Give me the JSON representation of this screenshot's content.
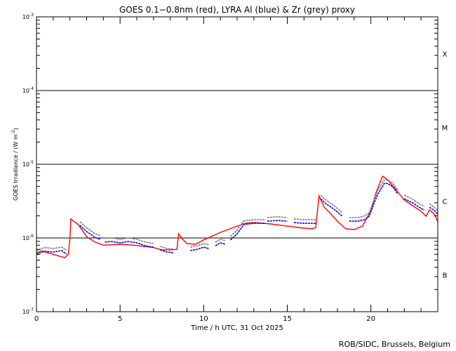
{
  "chart_data": {
    "type": "line",
    "title": "GOES 0.1−0.8nm (red), LYRA Al (blue) & Zr (grey) proxy",
    "xlabel": "Time / h UTC, 31 Oct 2025",
    "ylabel": "GOES Irradiance / (W m",
    "ylabel_sup": "-2",
    "ylabel_end": ")",
    "xlim": [
      0,
      24
    ],
    "ylim": [
      1e-07,
      0.001
    ],
    "yscale": "log",
    "x_ticks": [
      "0",
      "5",
      "10",
      "15",
      "20"
    ],
    "x_tick_values": [
      0,
      5,
      10,
      15,
      20
    ],
    "y_ticks": [
      {
        "base": "10",
        "exp": "-3",
        "value": 0.001
      },
      {
        "base": "10",
        "exp": "-4",
        "value": 0.0001
      },
      {
        "base": "10",
        "exp": "-5",
        "value": 1e-05
      },
      {
        "base": "10",
        "exp": "-6",
        "value": 1e-06
      },
      {
        "base": "10",
        "exp": "-7",
        "value": 1e-07
      }
    ],
    "reference_lines": [
      0.0001,
      1e-05,
      1e-06
    ],
    "flare_classes": [
      {
        "label": "X",
        "value": 0.000316
      },
      {
        "label": "M",
        "value": 3.16e-05
      },
      {
        "label": "C",
        "value": 3.16e-06
      },
      {
        "label": "B",
        "value": 3.16e-07
      }
    ],
    "colors": {
      "red": "#ff0000",
      "blue": "#0000ff",
      "grey": "#808080"
    },
    "series": [
      {
        "name": "GOES 0.1-0.8nm",
        "color": "red",
        "segments": [
          [
            [
              0,
              6.3e-07
            ],
            [
              0.3,
              6.7e-07
            ],
            [
              1,
              6e-07
            ],
            [
              1.7,
              5.4e-07
            ],
            [
              1.9,
              6e-07
            ],
            [
              2.0,
              9.8e-07
            ],
            [
              2.05,
              1.81e-06
            ],
            [
              2.5,
              1.52e-06
            ],
            [
              3,
              1.04e-06
            ],
            [
              3.5,
              8.8e-07
            ],
            [
              4,
              8e-07
            ],
            [
              5,
              8.2e-07
            ],
            [
              6,
              7.9e-07
            ],
            [
              7,
              7.4e-07
            ],
            [
              7.5,
              6.9e-07
            ],
            [
              8,
              6.9e-07
            ],
            [
              8.4,
              7e-07
            ],
            [
              8.5,
              1.14e-06
            ],
            [
              8.7,
              9.8e-07
            ],
            [
              9,
              8.4e-07
            ],
            [
              9.5,
              8.2e-07
            ],
            [
              10,
              9.4e-07
            ],
            [
              11,
              1.19e-06
            ],
            [
              12,
              1.45e-06
            ],
            [
              12.5,
              1.58e-06
            ],
            [
              13,
              1.62e-06
            ],
            [
              14,
              1.55e-06
            ],
            [
              15,
              1.45e-06
            ],
            [
              16,
              1.36e-06
            ],
            [
              16.5,
              1.33e-06
            ],
            [
              16.7,
              1.39e-06
            ],
            [
              16.9,
              3.73e-06
            ],
            [
              17.2,
              2.63e-06
            ],
            [
              17.5,
              2.25e-06
            ],
            [
              18,
              1.69e-06
            ],
            [
              18.5,
              1.33e-06
            ],
            [
              19,
              1.3e-06
            ],
            [
              19.5,
              1.45e-06
            ],
            [
              20,
              2.35e-06
            ],
            [
              20.3,
              4.07e-06
            ],
            [
              20.7,
              6.89e-06
            ],
            [
              21,
              6.17e-06
            ],
            [
              21.5,
              4.54e-06
            ],
            [
              22,
              3.27e-06
            ],
            [
              22.5,
              2.74e-06
            ],
            [
              23,
              2.3e-06
            ],
            [
              23.3,
              1.97e-06
            ],
            [
              23.5,
              2.4e-06
            ],
            [
              23.8,
              2.11e-06
            ],
            [
              24,
              1.66e-06
            ]
          ]
        ]
      },
      {
        "name": "LYRA Zr proxy",
        "color": "grey",
        "segments": [
          [
            [
              0,
              6.8e-07
            ],
            [
              0.5,
              7.4e-07
            ],
            [
              1,
              7.2e-07
            ],
            [
              1.5,
              7.5e-07
            ],
            [
              1.8,
              6.8e-07
            ]
          ],
          [
            [
              2.6,
              1.66e-06
            ],
            [
              3,
              1.37e-06
            ],
            [
              3.5,
              1.14e-06
            ],
            [
              3.8,
              1.08e-06
            ]
          ],
          [
            [
              4.1,
              9.9e-07
            ],
            [
              4.5,
              1e-06
            ],
            [
              5,
              9.6e-07
            ],
            [
              5.5,
              1e-06
            ],
            [
              6,
              9.6e-07
            ],
            [
              6.5,
              8.8e-07
            ],
            [
              7,
              8.4e-07
            ]
          ],
          [
            [
              7.4,
              7.7e-07
            ],
            [
              7.8,
              7.2e-07
            ],
            [
              8.2,
              7.1e-07
            ]
          ],
          [
            [
              9.2,
              7.5e-07
            ],
            [
              9.6,
              7.8e-07
            ],
            [
              10,
              8.4e-07
            ],
            [
              10.3,
              8.1e-07
            ]
          ],
          [
            [
              10.7,
              8.8e-07
            ],
            [
              11,
              9.6e-07
            ],
            [
              11.3,
              9.2e-07
            ]
          ],
          [
            [
              11.6,
              1.05e-06
            ],
            [
              12,
              1.28e-06
            ],
            [
              12.4,
              1.7e-06
            ],
            [
              13,
              1.77e-06
            ],
            [
              13.7,
              1.77e-06
            ]
          ],
          [
            [
              13.8,
              1.89e-06
            ],
            [
              14.4,
              1.94e-06
            ],
            [
              15,
              1.89e-06
            ]
          ],
          [
            [
              15.4,
              1.81e-06
            ],
            [
              16,
              1.77e-06
            ],
            [
              16.7,
              1.77e-06
            ]
          ],
          [
            [
              17.0,
              3.8e-06
            ],
            [
              17.3,
              3.3e-06
            ],
            [
              17.8,
              2.75e-06
            ],
            [
              18.3,
              2.2e-06
            ]
          ],
          [
            [
              18.7,
              1.89e-06
            ],
            [
              19.2,
              1.89e-06
            ],
            [
              19.6,
              1.98e-06
            ],
            [
              19.9,
              2.2e-06
            ],
            [
              20.1,
              2.9e-06
            ],
            [
              20.4,
              4.4e-06
            ],
            [
              20.8,
              6.1e-06
            ],
            [
              21.0,
              6.1e-06
            ],
            [
              21.3,
              5.6e-06
            ],
            [
              21.6,
              4.5e-06
            ]
          ],
          [
            [
              22.0,
              3.8e-06
            ],
            [
              22.5,
              3.35e-06
            ],
            [
              23.0,
              2.8e-06
            ],
            [
              23.2,
              2.7e-06
            ]
          ],
          [
            [
              23.5,
              2.9e-06
            ],
            [
              23.8,
              2.6e-06
            ],
            [
              24,
              2.35e-06
            ]
          ]
        ]
      },
      {
        "name": "LYRA Al proxy",
        "color": "blue",
        "segments": [
          [
            [
              0,
              6.04e-07
            ],
            [
              0.5,
              6.59e-07
            ],
            [
              1,
              6.45e-07
            ],
            [
              1.5,
              6.74e-07
            ],
            [
              1.8,
              6.04e-07
            ]
          ],
          [
            [
              2.6,
              1.48e-06
            ],
            [
              3,
              1.22e-06
            ],
            [
              3.5,
              1.02e-06
            ],
            [
              3.8,
              9.6e-07
            ]
          ],
          [
            [
              4.1,
              8.8e-07
            ],
            [
              4.5,
              8.96e-07
            ],
            [
              5,
              8.6e-07
            ],
            [
              5.5,
              8.96e-07
            ],
            [
              6,
              8.6e-07
            ],
            [
              6.5,
              7.86e-07
            ],
            [
              7,
              7.5e-07
            ]
          ],
          [
            [
              7.4,
              6.9e-07
            ],
            [
              7.8,
              6.45e-07
            ],
            [
              8.2,
              6.3e-07
            ]
          ],
          [
            [
              9.2,
              6.74e-07
            ],
            [
              9.6,
              7e-07
            ],
            [
              10,
              7.5e-07
            ],
            [
              10.3,
              7.2e-07
            ]
          ],
          [
            [
              10.7,
              7.86e-07
            ],
            [
              11,
              8.6e-07
            ],
            [
              11.3,
              8.2e-07
            ]
          ],
          [
            [
              11.6,
              9.4e-07
            ],
            [
              12,
              1.14e-06
            ],
            [
              12.4,
              1.52e-06
            ],
            [
              13,
              1.58e-06
            ],
            [
              13.7,
              1.58e-06
            ]
          ],
          [
            [
              13.8,
              1.69e-06
            ],
            [
              14.4,
              1.73e-06
            ],
            [
              15,
              1.69e-06
            ]
          ],
          [
            [
              15.4,
              1.62e-06
            ],
            [
              16,
              1.58e-06
            ],
            [
              16.7,
              1.58e-06
            ]
          ],
          [
            [
              17.0,
              3.41e-06
            ],
            [
              17.3,
              2.93e-06
            ],
            [
              17.8,
              2.46e-06
            ],
            [
              18.3,
              1.97e-06
            ]
          ],
          [
            [
              18.7,
              1.69e-06
            ],
            [
              19.2,
              1.69e-06
            ],
            [
              19.6,
              1.77e-06
            ],
            [
              19.9,
              1.97e-06
            ],
            [
              20.1,
              2.62e-06
            ],
            [
              20.4,
              3.89e-06
            ],
            [
              20.8,
              5.5e-06
            ],
            [
              21.0,
              5.5e-06
            ],
            [
              21.3,
              4.96e-06
            ],
            [
              21.6,
              3.98e-06
            ]
          ],
          [
            [
              22.0,
              3.41e-06
            ],
            [
              22.5,
              2.99e-06
            ],
            [
              23.0,
              2.51e-06
            ],
            [
              23.2,
              2.4e-06
            ]
          ],
          [
            [
              23.5,
              2.62e-06
            ],
            [
              23.8,
              2.35e-06
            ],
            [
              24,
              2.11e-06
            ]
          ]
        ]
      }
    ]
  },
  "footer": {
    "credit": "ROB/SIDC, Brussels, Belgium"
  }
}
